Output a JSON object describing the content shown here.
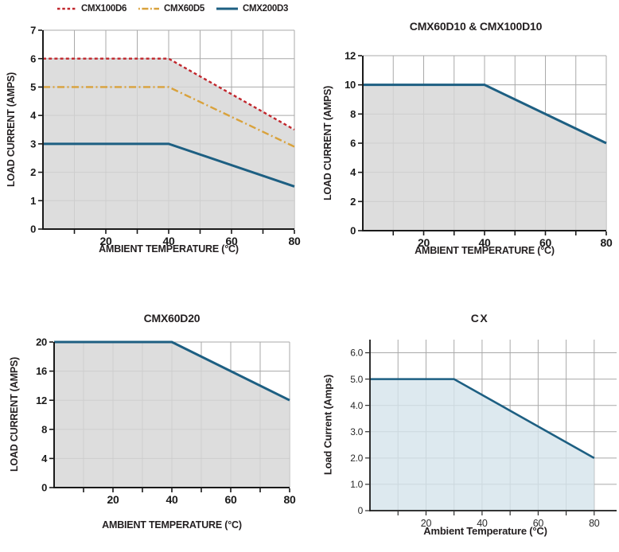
{
  "colors": {
    "grid": "#a9a9a9",
    "axis": "#1a1a1a",
    "text": "#231f20",
    "curve_red": "#c1272d",
    "curve_orange": "#d9a23c",
    "curve_blue": "#1d5f82",
    "fill_gray": "#d6d6d6",
    "fill_light_blue": "#d5e4eb"
  },
  "chart_data": [
    {
      "id": "cmx-multi-derating",
      "type": "area",
      "title": "",
      "xlabel": "AMBIENT TEMPERATURE (°C)",
      "ylabel": "LOAD CURRENT (AMPS)",
      "xlim": [
        0,
        80
      ],
      "ylim": [
        0,
        7
      ],
      "xticks": [
        10,
        20,
        30,
        40,
        50,
        60,
        70,
        80
      ],
      "xtick_labeled": [
        20,
        40,
        60,
        80
      ],
      "yticks": [
        0,
        1,
        2,
        3,
        4,
        5,
        6,
        7
      ],
      "grid": true,
      "legend_position": "top",
      "fill": {
        "under_series": 0,
        "color": "#d6d6d6",
        "opacity": 0.82
      },
      "series": [
        {
          "name": "CMX100D6",
          "color": "#c1272d",
          "line_style": "dashed",
          "x": [
            0,
            40,
            80
          ],
          "y": [
            6,
            6,
            3.5
          ]
        },
        {
          "name": "CMX60D5",
          "color": "#d9a23c",
          "line_style": "dashdot",
          "x": [
            0,
            40,
            80
          ],
          "y": [
            5,
            5,
            2.9
          ]
        },
        {
          "name": "CMX200D3",
          "color": "#1d5f82",
          "line_style": "solid",
          "x": [
            0,
            40,
            80
          ],
          "y": [
            3,
            3,
            1.5
          ]
        }
      ]
    },
    {
      "id": "cmx60d10-cmx100d10",
      "type": "area",
      "title": "CMX60D10 & CMX100D10",
      "xlabel": "AMBIENT TEMPERATURE (°C)",
      "ylabel": "LOAD CURRENT (AMPS)",
      "xlim": [
        0,
        80
      ],
      "ylim": [
        0,
        12
      ],
      "xticks": [
        10,
        20,
        30,
        40,
        50,
        60,
        70,
        80
      ],
      "xtick_labeled": [
        20,
        40,
        60,
        80
      ],
      "yticks": [
        0,
        2,
        4,
        6,
        8,
        10,
        12
      ],
      "grid": true,
      "fill": {
        "under_series": 0,
        "color": "#d6d6d6",
        "opacity": 0.82
      },
      "series": [
        {
          "name": "CMX60D10 & CMX100D10",
          "color": "#1d5f82",
          "line_style": "solid",
          "x": [
            0,
            40,
            80
          ],
          "y": [
            10,
            10,
            6
          ]
        }
      ]
    },
    {
      "id": "cmx60d20",
      "type": "area",
      "title": "CMX60D20",
      "xlabel": "AMBIENT TEMPERATURE (°C)",
      "ylabel": "LOAD CURRENT (AMPS)",
      "xlim": [
        0,
        80
      ],
      "ylim": [
        0,
        20
      ],
      "xticks": [
        10,
        20,
        30,
        40,
        50,
        60,
        70,
        80
      ],
      "xtick_labeled": [
        20,
        40,
        60,
        80
      ],
      "yticks": [
        0,
        4,
        8,
        12,
        16,
        20
      ],
      "grid": true,
      "fill": {
        "under_series": 0,
        "color": "#d6d6d6",
        "opacity": 0.82
      },
      "series": [
        {
          "name": "CMX60D20",
          "color": "#1d5f82",
          "line_style": "solid",
          "x": [
            0,
            40,
            80
          ],
          "y": [
            20,
            20,
            12
          ]
        }
      ]
    },
    {
      "id": "cx",
      "type": "area",
      "title": "CX",
      "xlabel": "Ambient Temperature (°C)",
      "ylabel": "Load Current (Amps)",
      "xlim": [
        0,
        80
      ],
      "ylim": [
        0,
        6
      ],
      "x_axis_extend": 88,
      "y_axis_extend": 6.5,
      "xticks": [
        10,
        20,
        30,
        40,
        50,
        60,
        70,
        80
      ],
      "xtick_labeled": [
        20,
        40,
        60,
        80
      ],
      "yticks": [
        0,
        1,
        2,
        3,
        4,
        5,
        6
      ],
      "ytick_labels": [
        "0",
        "1.0",
        "2.0",
        "3.0",
        "4.0",
        "5.0",
        "6.0"
      ],
      "grid": true,
      "fill": {
        "under_series": 0,
        "color": "#d5e4eb",
        "opacity": 0.8
      },
      "series": [
        {
          "name": "CX",
          "color": "#1d5f82",
          "line_style": "solid",
          "x": [
            0,
            30,
            80
          ],
          "y": [
            5,
            5,
            2
          ]
        }
      ]
    }
  ]
}
